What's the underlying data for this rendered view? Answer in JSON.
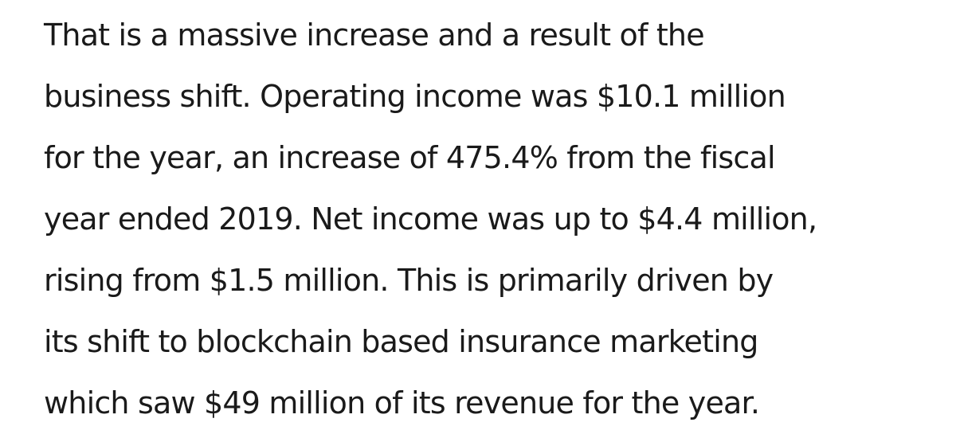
{
  "article": {
    "lines": [
      "That is a massive increase and a result of the",
      "business shift. Operating income was $10.1 million",
      "for the year, an increase of 475.4% from the fiscal",
      "year ended 2019. Net income was up to $4.4 million,",
      "rising from $1.5 million. This is primarily driven by",
      "its shift to blockchain based insurance marketing",
      "which saw $49 million of its revenue for the year."
    ]
  }
}
